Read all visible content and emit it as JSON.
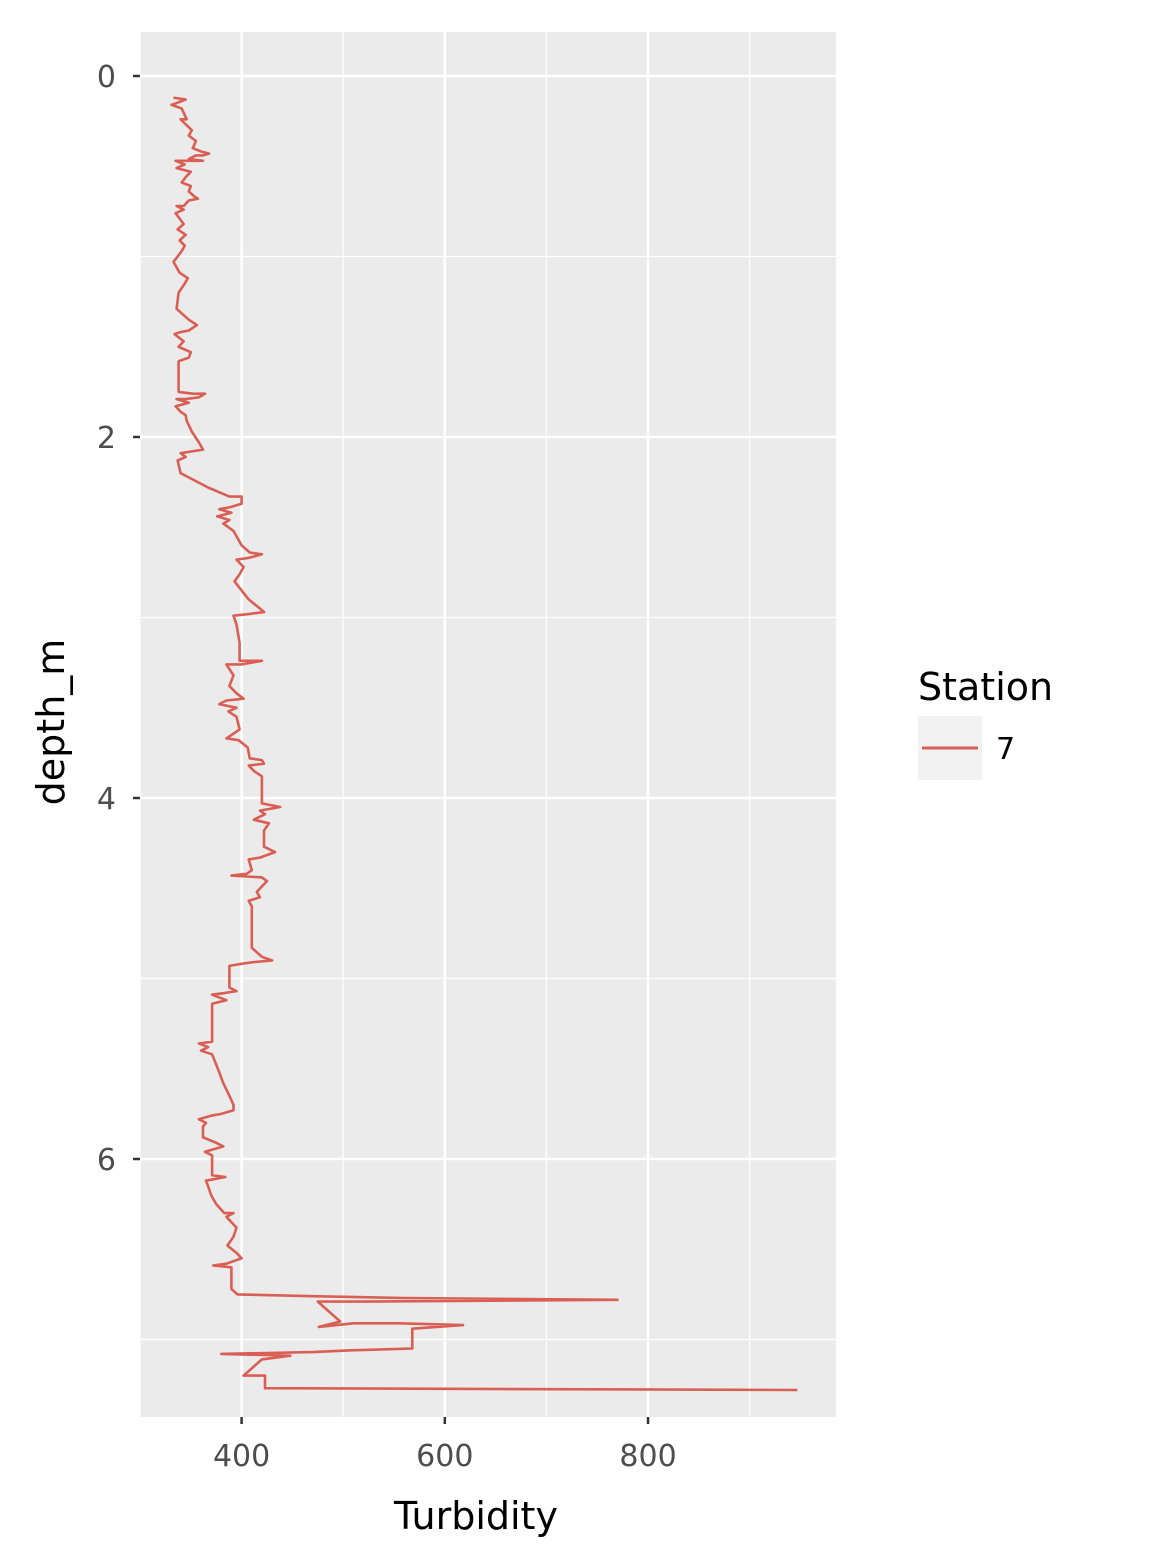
{
  "chart_data": {
    "type": "line",
    "title": "",
    "xlabel": "Turbidity",
    "ylabel": "depth_m",
    "xlim": [
      300,
      985
    ],
    "ylim": [
      0,
      7.6
    ],
    "y_reversed": true,
    "x_ticks": [
      400,
      600,
      800
    ],
    "y_ticks": [
      0,
      2,
      4,
      6
    ],
    "grid": true,
    "legend": {
      "title": "Station",
      "placement": "right"
    },
    "series": [
      {
        "name": "7",
        "color": "#d95f55",
        "points": [
          [
            333,
            0.12
          ],
          [
            345,
            0.13
          ],
          [
            336,
            0.15
          ],
          [
            331,
            0.16
          ],
          [
            341,
            0.18
          ],
          [
            346,
            0.24
          ],
          [
            340,
            0.24
          ],
          [
            351,
            0.3
          ],
          [
            348,
            0.33
          ],
          [
            355,
            0.36
          ],
          [
            352,
            0.4
          ],
          [
            361,
            0.42
          ],
          [
            368,
            0.43
          ],
          [
            362,
            0.44
          ],
          [
            355,
            0.44
          ],
          [
            348,
            0.46
          ],
          [
            362,
            0.47
          ],
          [
            335,
            0.47
          ],
          [
            344,
            0.49
          ],
          [
            336,
            0.51
          ],
          [
            350,
            0.53
          ],
          [
            345,
            0.56
          ],
          [
            341,
            0.59
          ],
          [
            350,
            0.61
          ],
          [
            348,
            0.64
          ],
          [
            354,
            0.67
          ],
          [
            357,
            0.68
          ],
          [
            348,
            0.69
          ],
          [
            343,
            0.72
          ],
          [
            336,
            0.72
          ],
          [
            343,
            0.74
          ],
          [
            335,
            0.76
          ],
          [
            339,
            0.79
          ],
          [
            343,
            0.82
          ],
          [
            337,
            0.85
          ],
          [
            345,
            0.88
          ],
          [
            339,
            0.91
          ],
          [
            344,
            0.94
          ],
          [
            341,
            0.97
          ],
          [
            333,
            1.03
          ],
          [
            339,
            1.09
          ],
          [
            347,
            1.12
          ],
          [
            344,
            1.15
          ],
          [
            338,
            1.2
          ],
          [
            336,
            1.29
          ],
          [
            348,
            1.35
          ],
          [
            356,
            1.38
          ],
          [
            348,
            1.41
          ],
          [
            339,
            1.42
          ],
          [
            334,
            1.43
          ],
          [
            343,
            1.47
          ],
          [
            338,
            1.5
          ],
          [
            350,
            1.53
          ],
          [
            348,
            1.56
          ],
          [
            338,
            1.58
          ],
          [
            338,
            1.75
          ],
          [
            352,
            1.76
          ],
          [
            364,
            1.76
          ],
          [
            358,
            1.78
          ],
          [
            345,
            1.79
          ],
          [
            336,
            1.79
          ],
          [
            348,
            1.81
          ],
          [
            335,
            1.83
          ],
          [
            340,
            1.86
          ],
          [
            345,
            1.88
          ],
          [
            346,
            1.91
          ],
          [
            351,
            1.97
          ],
          [
            358,
            2.03
          ],
          [
            362,
            2.07
          ],
          [
            340,
            2.09
          ],
          [
            345,
            2.11
          ],
          [
            337,
            2.13
          ],
          [
            340,
            2.2
          ],
          [
            367,
            2.28
          ],
          [
            388,
            2.33
          ],
          [
            400,
            2.33
          ],
          [
            400,
            2.37
          ],
          [
            388,
            2.39
          ],
          [
            378,
            2.4
          ],
          [
            390,
            2.42
          ],
          [
            376,
            2.44
          ],
          [
            388,
            2.46
          ],
          [
            382,
            2.48
          ],
          [
            392,
            2.52
          ],
          [
            395,
            2.55
          ],
          [
            400,
            2.6
          ],
          [
            408,
            2.64
          ],
          [
            420,
            2.65
          ],
          [
            407,
            2.67
          ],
          [
            395,
            2.68
          ],
          [
            402,
            2.72
          ],
          [
            398,
            2.76
          ],
          [
            393,
            2.8
          ],
          [
            400,
            2.85
          ],
          [
            407,
            2.9
          ],
          [
            418,
            2.95
          ],
          [
            422,
            2.97
          ],
          [
            408,
            2.98
          ],
          [
            392,
            2.99
          ],
          [
            395,
            3.04
          ],
          [
            398,
            3.14
          ],
          [
            398,
            3.24
          ],
          [
            420,
            3.24
          ],
          [
            400,
            3.26
          ],
          [
            385,
            3.26
          ],
          [
            392,
            3.32
          ],
          [
            388,
            3.38
          ],
          [
            395,
            3.42
          ],
          [
            402,
            3.45
          ],
          [
            385,
            3.46
          ],
          [
            378,
            3.48
          ],
          [
            395,
            3.5
          ],
          [
            387,
            3.52
          ],
          [
            395,
            3.55
          ],
          [
            398,
            3.62
          ],
          [
            385,
            3.67
          ],
          [
            397,
            3.68
          ],
          [
            406,
            3.72
          ],
          [
            408,
            3.78
          ],
          [
            420,
            3.79
          ],
          [
            422,
            3.81
          ],
          [
            407,
            3.82
          ],
          [
            412,
            3.85
          ],
          [
            420,
            3.88
          ],
          [
            420,
            4.03
          ],
          [
            438,
            4.05
          ],
          [
            418,
            4.07
          ],
          [
            423,
            4.09
          ],
          [
            412,
            4.12
          ],
          [
            427,
            4.14
          ],
          [
            422,
            4.18
          ],
          [
            422,
            4.27
          ],
          [
            433,
            4.3
          ],
          [
            418,
            4.33
          ],
          [
            407,
            4.34
          ],
          [
            410,
            4.4
          ],
          [
            405,
            4.42
          ],
          [
            390,
            4.43
          ],
          [
            420,
            4.44
          ],
          [
            425,
            4.46
          ],
          [
            415,
            4.52
          ],
          [
            418,
            4.55
          ],
          [
            407,
            4.57
          ],
          [
            410,
            4.6
          ],
          [
            410,
            4.68
          ],
          [
            410,
            4.83
          ],
          [
            420,
            4.88
          ],
          [
            430,
            4.9
          ],
          [
            410,
            4.91
          ],
          [
            398,
            4.92
          ],
          [
            388,
            4.93
          ],
          [
            388,
            5.05
          ],
          [
            395,
            5.07
          ],
          [
            384,
            5.08
          ],
          [
            371,
            5.09
          ],
          [
            385,
            5.12
          ],
          [
            371,
            5.14
          ],
          [
            371,
            5.35
          ],
          [
            358,
            5.36
          ],
          [
            367,
            5.38
          ],
          [
            360,
            5.4
          ],
          [
            371,
            5.42
          ],
          [
            378,
            5.52
          ],
          [
            382,
            5.58
          ],
          [
            388,
            5.65
          ],
          [
            392,
            5.7
          ],
          [
            392,
            5.73
          ],
          [
            380,
            5.75
          ],
          [
            370,
            5.76
          ],
          [
            358,
            5.78
          ],
          [
            365,
            5.8
          ],
          [
            362,
            5.82
          ],
          [
            362,
            5.88
          ],
          [
            375,
            5.91
          ],
          [
            382,
            5.93
          ],
          [
            370,
            5.95
          ],
          [
            364,
            5.96
          ],
          [
            371,
            5.98
          ],
          [
            371,
            6.09
          ],
          [
            384,
            6.1
          ],
          [
            365,
            6.12
          ],
          [
            367,
            6.15
          ],
          [
            370,
            6.2
          ],
          [
            375,
            6.25
          ],
          [
            383,
            6.3
          ],
          [
            392,
            6.3
          ],
          [
            385,
            6.32
          ],
          [
            395,
            6.38
          ],
          [
            392,
            6.43
          ],
          [
            386,
            6.48
          ],
          [
            395,
            6.52
          ],
          [
            400,
            6.55
          ],
          [
            385,
            6.58
          ],
          [
            372,
            6.59
          ],
          [
            390,
            6.6
          ],
          [
            390,
            6.72
          ],
          [
            396,
            6.75
          ],
          [
            470,
            6.76
          ],
          [
            560,
            6.77
          ],
          [
            770,
            6.78
          ],
          [
            520,
            6.79
          ],
          [
            475,
            6.79
          ],
          [
            497,
            6.9
          ],
          [
            476,
            6.93
          ],
          [
            510,
            6.91
          ],
          [
            555,
            6.91
          ],
          [
            618,
            6.92
          ],
          [
            568,
            6.94
          ],
          [
            568,
            7.05
          ],
          [
            508,
            7.06
          ],
          [
            470,
            7.07
          ],
          [
            380,
            7.08
          ],
          [
            448,
            7.09
          ],
          [
            420,
            7.11
          ],
          [
            402,
            7.2
          ],
          [
            423,
            7.2
          ],
          [
            423,
            7.27
          ],
          [
            947,
            7.28
          ]
        ]
      }
    ]
  }
}
